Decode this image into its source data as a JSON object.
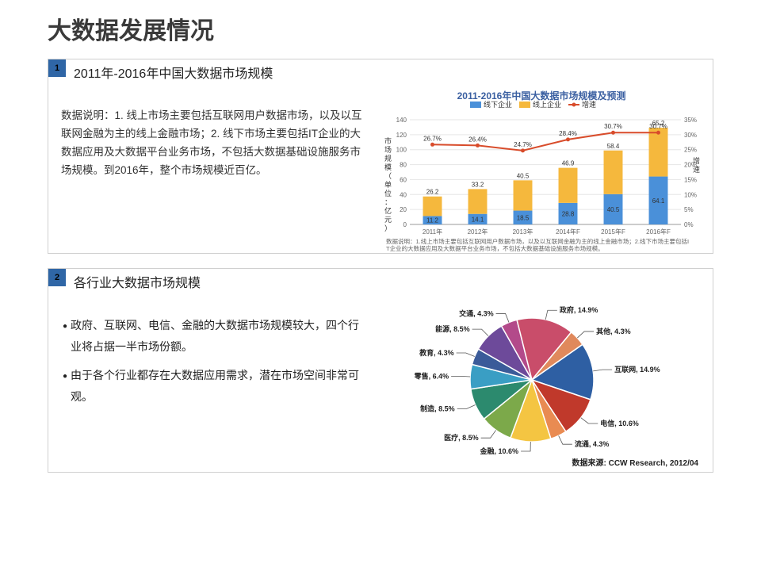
{
  "page_title": "大数据发展情况",
  "section1": {
    "num": "1",
    "title": "2011年-2016年中国大数据市场规模",
    "text": "数据说明：1. 线上市场主要包括互联网用户数据市场，以及以互联网金融为主的线上金融市场；2. 线下市场主要包括IT企业的大数据应用及大数据平台业务市场，不包括大数据基础设施服务市场规模。到2016年，整个市场规模近百亿。",
    "chart": {
      "title": "2011-2016年中国大数据市场规模及预测",
      "legend": [
        "线下企业",
        "线上企业",
        "增速"
      ],
      "legend_colors": [
        "#4a90d9",
        "#f5b83d",
        "#d84c2b"
      ],
      "years": [
        "2011年",
        "2012年",
        "2013年",
        "2014年F",
        "2015年F",
        "2016年F"
      ],
      "offline": [
        11.2,
        14.1,
        18.5,
        28.8,
        40.5,
        64.1
      ],
      "online": [
        26.2,
        33.2,
        40.5,
        46.9,
        58.4,
        65.2
      ],
      "growth": [
        26.7,
        26.4,
        24.7,
        28.4,
        30.7,
        30.7
      ],
      "y_left_max": 140,
      "y_left_step": 20,
      "y_right_max": 35,
      "y_right_step": 5,
      "y_left_label": "市场规模（单位：亿元）",
      "y_right_label": "增速",
      "colors": {
        "offline": "#4a90d9",
        "online": "#f5b83d",
        "line": "#d84c2b",
        "grid": "#e6e6e6",
        "axis": "#999"
      },
      "footnote": "数据说明：1.线上市场主要包括互联网用户数据市场，以及以互联网金融为主的线上金融市场；2.线下市场主要包括IT企业的大数据应用及大数据平台业务市场，不包括大数据基础设施服务市场规模。"
    }
  },
  "section2": {
    "num": "2",
    "title": "各行业大数据市场规模",
    "bullets": [
      "政府、互联网、电信、金融的大数据市场规模较大，四个行业将占据一半市场份额。",
      "由于各个行业都存在大数据应用需求，潜在市场空间非常可观。"
    ],
    "pie": {
      "slices": [
        {
          "label": "互联网",
          "value": 14.9,
          "color": "#2e5fa3"
        },
        {
          "label": "电信",
          "value": 10.6,
          "color": "#c0392b"
        },
        {
          "label": "流通",
          "value": 4.3,
          "color": "#e98b52"
        },
        {
          "label": "金融",
          "value": 10.6,
          "color": "#f4c542"
        },
        {
          "label": "医疗",
          "value": 8.5,
          "color": "#7ca94a"
        },
        {
          "label": "制造",
          "value": 8.5,
          "color": "#2c8a6e"
        },
        {
          "label": "零售",
          "value": 6.4,
          "color": "#3a9ec4"
        },
        {
          "label": "教育",
          "value": 4.3,
          "color": "#3b5b99"
        },
        {
          "label": "能源",
          "value": 8.5,
          "color": "#6d4a9a"
        },
        {
          "label": "交通",
          "value": 4.3,
          "color": "#b34a8a"
        },
        {
          "label": "政府",
          "value": 14.9,
          "color": "#c94d6a"
        },
        {
          "label": "其他",
          "value": 4.3,
          "color": "#e0895c"
        }
      ],
      "source": "数据来源: CCW Research, 2012/04",
      "stroke": "#ffffff"
    }
  }
}
